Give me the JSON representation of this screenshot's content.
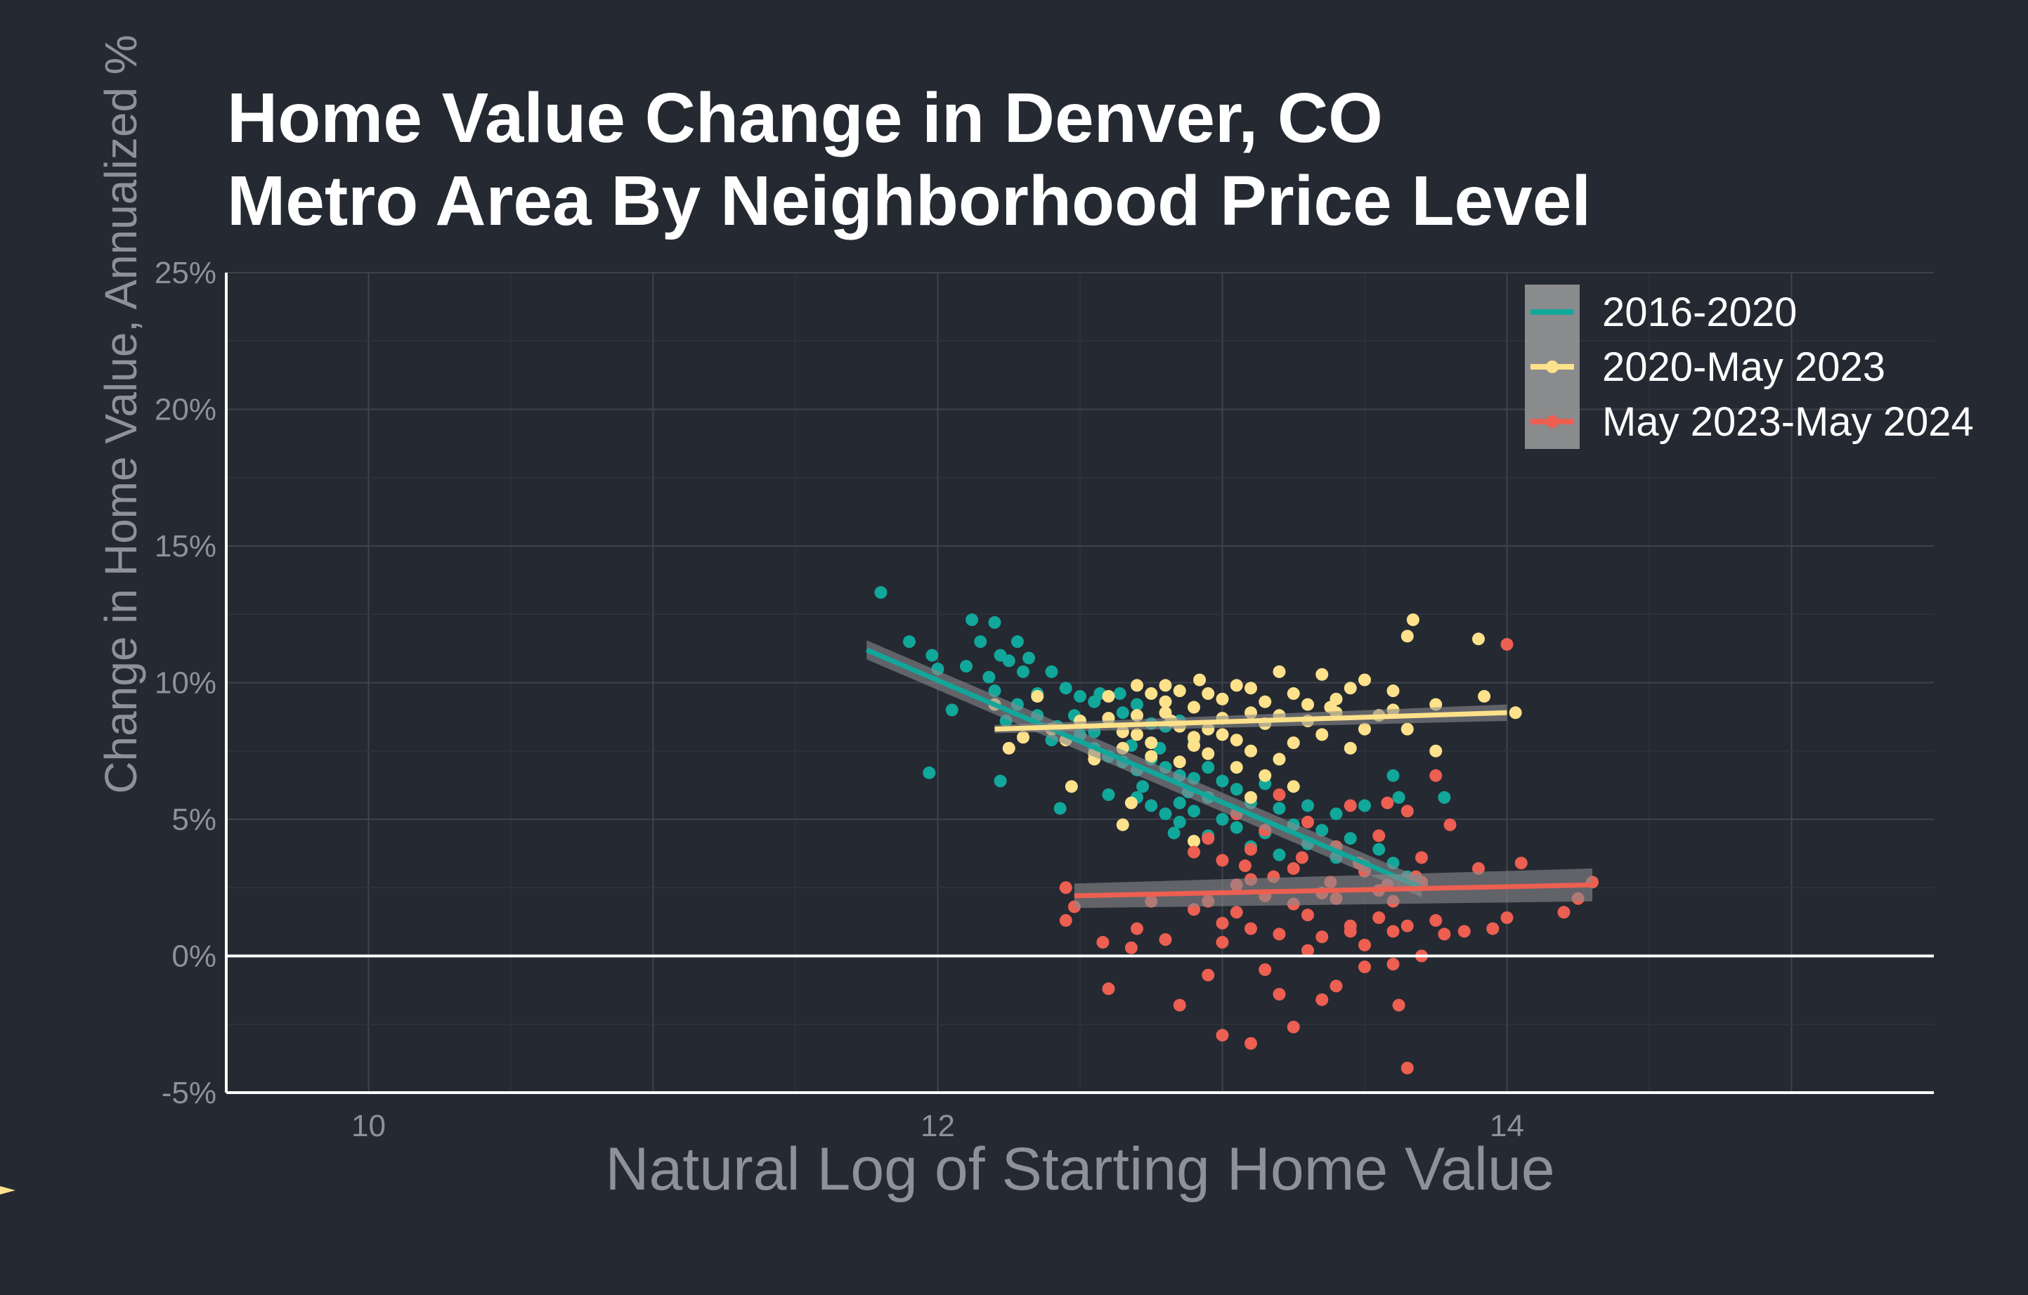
{
  "chart_data": {
    "type": "scatter",
    "title": "Home Value Change in Denver, CO",
    "subtitle": "Metro Area By Neighborhood Price Level",
    "xlabel": "Natural Log of Starting Home Value",
    "ylabel": "Change in Home Value, Annualized %",
    "xlim": [
      9.5,
      15.5
    ],
    "ylim": [
      -5,
      25
    ],
    "x_ticks": [
      10,
      12,
      14
    ],
    "x_tick_labels": [
      "10",
      "12",
      "14"
    ],
    "y_ticks": [
      -5,
      0,
      5,
      10,
      15,
      20,
      25
    ],
    "y_tick_labels": [
      "-5%",
      "0%",
      "5%",
      "10%",
      "15%",
      "20%",
      "25%"
    ],
    "grid": true,
    "legend_position": "top-right",
    "series": [
      {
        "name": "2016-2020",
        "color": "#11a79b",
        "trend": {
          "x": [
            11.75,
            13.7
          ],
          "y": [
            11.2,
            2.5
          ],
          "band": [
            0.35,
            0.35
          ]
        },
        "points": [
          [
            11.8,
            13.3
          ],
          [
            11.9,
            11.5
          ],
          [
            11.98,
            11.0
          ],
          [
            12.0,
            10.5
          ],
          [
            12.05,
            9.0
          ],
          [
            11.97,
            6.7
          ],
          [
            12.12,
            12.3
          ],
          [
            12.15,
            11.5
          ],
          [
            12.2,
            12.2
          ],
          [
            12.22,
            11.0
          ],
          [
            12.25,
            10.8
          ],
          [
            12.28,
            11.5
          ],
          [
            12.1,
            10.6
          ],
          [
            12.18,
            10.2
          ],
          [
            12.3,
            10.4
          ],
          [
            12.32,
            10.9
          ],
          [
            12.35,
            9.6
          ],
          [
            12.4,
            10.4
          ],
          [
            12.45,
            9.8
          ],
          [
            12.5,
            9.5
          ],
          [
            12.55,
            9.3
          ],
          [
            12.2,
            9.7
          ],
          [
            12.24,
            8.6
          ],
          [
            12.28,
            9.2
          ],
          [
            12.35,
            8.8
          ],
          [
            12.42,
            8.4
          ],
          [
            12.48,
            8.8
          ],
          [
            12.55,
            8.2
          ],
          [
            12.6,
            8.6
          ],
          [
            12.64,
            9.6
          ],
          [
            12.7,
            9.2
          ],
          [
            12.75,
            8.5
          ],
          [
            12.8,
            8.4
          ],
          [
            12.85,
            8.6
          ],
          [
            12.9,
            7.9
          ],
          [
            12.55,
            7.6
          ],
          [
            12.6,
            7.3
          ],
          [
            12.65,
            7.1
          ],
          [
            12.7,
            6.8
          ],
          [
            12.72,
            6.2
          ],
          [
            12.75,
            7.2
          ],
          [
            12.8,
            6.9
          ],
          [
            12.85,
            6.6
          ],
          [
            12.88,
            6.0
          ],
          [
            12.9,
            6.5
          ],
          [
            12.95,
            6.9
          ],
          [
            13.0,
            6.4
          ],
          [
            12.7,
            5.8
          ],
          [
            12.75,
            5.5
          ],
          [
            12.8,
            5.2
          ],
          [
            12.85,
            5.6
          ],
          [
            12.9,
            5.3
          ],
          [
            12.95,
            5.8
          ],
          [
            13.0,
            5.0
          ],
          [
            13.05,
            6.1
          ],
          [
            13.1,
            5.6
          ],
          [
            13.15,
            6.3
          ],
          [
            13.2,
            5.4
          ],
          [
            13.25,
            4.8
          ],
          [
            13.3,
            5.5
          ],
          [
            13.35,
            4.6
          ],
          [
            13.4,
            5.2
          ],
          [
            13.45,
            4.3
          ],
          [
            13.5,
            5.5
          ],
          [
            12.85,
            4.9
          ],
          [
            12.95,
            4.4
          ],
          [
            13.05,
            4.7
          ],
          [
            13.1,
            4.0
          ],
          [
            13.15,
            4.5
          ],
          [
            13.2,
            3.7
          ],
          [
            13.3,
            4.1
          ],
          [
            13.4,
            3.6
          ],
          [
            13.5,
            3.3
          ],
          [
            13.55,
            3.9
          ],
          [
            13.6,
            3.4
          ],
          [
            13.65,
            2.9
          ],
          [
            13.7,
            2.6
          ],
          [
            13.6,
            6.6
          ],
          [
            13.62,
            5.8
          ],
          [
            13.78,
            5.8
          ],
          [
            12.22,
            6.4
          ],
          [
            12.43,
            5.4
          ],
          [
            12.57,
            9.6
          ],
          [
            12.83,
            4.5
          ],
          [
            12.65,
            8.9
          ],
          [
            12.5,
            8.1
          ],
          [
            12.4,
            7.9
          ],
          [
            12.6,
            5.9
          ],
          [
            12.68,
            7.7
          ],
          [
            12.78,
            7.6
          ]
        ]
      },
      {
        "name": "2020-May 2023",
        "color": "#fde18b",
        "trend": {
          "x": [
            12.2,
            14.0
          ],
          "y": [
            8.3,
            8.9
          ],
          "band": [
            0.15,
            0.3
          ]
        },
        "points": [
          [
            12.2,
            9.2
          ],
          [
            12.25,
            7.6
          ],
          [
            12.3,
            8.0
          ],
          [
            12.35,
            9.5
          ],
          [
            12.4,
            8.3
          ],
          [
            12.45,
            7.9
          ],
          [
            12.5,
            8.6
          ],
          [
            12.55,
            7.4
          ],
          [
            12.6,
            9.5
          ],
          [
            12.65,
            8.2
          ],
          [
            12.7,
            8.8
          ],
          [
            12.75,
            7.8
          ],
          [
            12.8,
            9.9
          ],
          [
            12.85,
            8.4
          ],
          [
            12.9,
            7.7
          ],
          [
            12.95,
            9.6
          ],
          [
            13.0,
            8.7
          ],
          [
            13.05,
            7.9
          ],
          [
            13.1,
            9.8
          ],
          [
            13.15,
            8.5
          ],
          [
            13.2,
            10.4
          ],
          [
            13.25,
            7.8
          ],
          [
            13.3,
            9.2
          ],
          [
            13.35,
            8.1
          ],
          [
            13.4,
            9.4
          ],
          [
            13.45,
            7.6
          ],
          [
            13.5,
            10.1
          ],
          [
            13.55,
            8.8
          ],
          [
            13.6,
            9.7
          ],
          [
            13.65,
            8.3
          ],
          [
            12.7,
            9.9
          ],
          [
            12.75,
            9.6
          ],
          [
            12.8,
            9.3
          ],
          [
            12.85,
            9.7
          ],
          [
            12.9,
            9.1
          ],
          [
            12.95,
            8.3
          ],
          [
            13.0,
            9.4
          ],
          [
            13.05,
            9.9
          ],
          [
            13.1,
            8.9
          ],
          [
            13.15,
            9.3
          ],
          [
            13.2,
            8.8
          ],
          [
            13.25,
            9.6
          ],
          [
            13.3,
            8.6
          ],
          [
            13.35,
            10.3
          ],
          [
            13.4,
            8.9
          ],
          [
            13.45,
            9.8
          ],
          [
            13.5,
            8.3
          ],
          [
            12.6,
            8.7
          ],
          [
            12.65,
            7.6
          ],
          [
            12.7,
            8.1
          ],
          [
            12.75,
            7.3
          ],
          [
            12.8,
            8.9
          ],
          [
            12.85,
            7.1
          ],
          [
            12.9,
            8.0
          ],
          [
            12.95,
            7.4
          ],
          [
            13.0,
            8.1
          ],
          [
            13.05,
            6.9
          ],
          [
            13.1,
            7.5
          ],
          [
            13.15,
            6.6
          ],
          [
            13.2,
            7.2
          ],
          [
            12.68,
            5.6
          ],
          [
            12.65,
            4.8
          ],
          [
            12.47,
            6.2
          ],
          [
            12.9,
            4.2
          ],
          [
            13.1,
            5.8
          ],
          [
            13.25,
            6.2
          ],
          [
            13.65,
            11.7
          ],
          [
            13.67,
            12.3
          ],
          [
            13.9,
            11.6
          ],
          [
            13.92,
            9.5
          ],
          [
            13.75,
            9.2
          ],
          [
            14.03,
            8.9
          ],
          [
            13.75,
            7.5
          ],
          [
            13.6,
            9.0
          ],
          [
            12.92,
            10.1
          ],
          [
            12.55,
            7.2
          ],
          [
            13.38,
            9.1
          ],
          [
            12.82,
            8.6
          ]
        ]
      },
      {
        "name": "May 2023-May 2024",
        "color": "#ec5f51",
        "trend": {
          "x": [
            12.48,
            14.3
          ],
          "y": [
            2.2,
            2.6
          ],
          "band": [
            0.45,
            0.6
          ]
        },
        "points": [
          [
            12.45,
            2.5
          ],
          [
            12.45,
            1.3
          ],
          [
            12.48,
            1.8
          ],
          [
            12.58,
            0.5
          ],
          [
            12.6,
            -1.2
          ],
          [
            12.68,
            0.3
          ],
          [
            12.7,
            1.0
          ],
          [
            12.75,
            2.0
          ],
          [
            12.8,
            0.6
          ],
          [
            12.85,
            -1.8
          ],
          [
            12.9,
            1.7
          ],
          [
            12.95,
            -0.7
          ],
          [
            13.0,
            -2.9
          ],
          [
            13.0,
            0.5
          ],
          [
            13.05,
            1.6
          ],
          [
            13.1,
            -3.2
          ],
          [
            13.1,
            3.9
          ],
          [
            13.15,
            -0.5
          ],
          [
            13.2,
            -1.4
          ],
          [
            13.25,
            -2.6
          ],
          [
            13.3,
            0.2
          ],
          [
            13.35,
            -1.6
          ],
          [
            13.4,
            -1.1
          ],
          [
            13.45,
            0.9
          ],
          [
            13.5,
            -0.4
          ],
          [
            13.55,
            1.4
          ],
          [
            13.6,
            -0.3
          ],
          [
            13.62,
            -1.8
          ],
          [
            13.65,
            -4.1
          ],
          [
            13.7,
            0.0
          ],
          [
            12.9,
            3.8
          ],
          [
            12.95,
            4.3
          ],
          [
            13.0,
            3.5
          ],
          [
            13.05,
            5.2
          ],
          [
            13.1,
            2.8
          ],
          [
            13.15,
            4.6
          ],
          [
            13.2,
            5.9
          ],
          [
            13.25,
            3.2
          ],
          [
            13.3,
            4.9
          ],
          [
            13.35,
            2.3
          ],
          [
            13.4,
            4.0
          ],
          [
            13.45,
            5.5
          ],
          [
            13.5,
            3.1
          ],
          [
            13.55,
            4.4
          ],
          [
            13.6,
            2.0
          ],
          [
            13.65,
            5.3
          ],
          [
            13.7,
            3.6
          ],
          [
            13.75,
            1.3
          ],
          [
            12.95,
            2.0
          ],
          [
            13.0,
            1.2
          ],
          [
            13.05,
            2.6
          ],
          [
            13.1,
            1.0
          ],
          [
            13.15,
            2.2
          ],
          [
            13.2,
            0.8
          ],
          [
            13.25,
            1.9
          ],
          [
            13.3,
            1.5
          ],
          [
            13.35,
            0.7
          ],
          [
            13.4,
            2.1
          ],
          [
            13.45,
            1.1
          ],
          [
            13.5,
            0.4
          ],
          [
            13.55,
            2.4
          ],
          [
            13.6,
            0.9
          ],
          [
            13.08,
            3.3
          ],
          [
            13.18,
            2.9
          ],
          [
            13.28,
            3.6
          ],
          [
            13.38,
            2.7
          ],
          [
            13.48,
            3.4
          ],
          [
            13.58,
            2.6
          ],
          [
            13.68,
            2.9
          ],
          [
            13.75,
            6.6
          ],
          [
            13.8,
            4.8
          ],
          [
            13.9,
            3.2
          ],
          [
            14.0,
            11.4
          ],
          [
            14.0,
            1.4
          ],
          [
            14.05,
            3.4
          ],
          [
            14.2,
            1.6
          ],
          [
            14.3,
            2.7
          ],
          [
            14.25,
            2.1
          ],
          [
            13.85,
            0.9
          ],
          [
            13.95,
            1.0
          ],
          [
            13.78,
            0.8
          ],
          [
            13.65,
            1.1
          ],
          [
            13.58,
            5.6
          ],
          [
            13.7,
            2.7
          ]
        ]
      }
    ],
    "reference_line": {
      "y": 0
    }
  }
}
